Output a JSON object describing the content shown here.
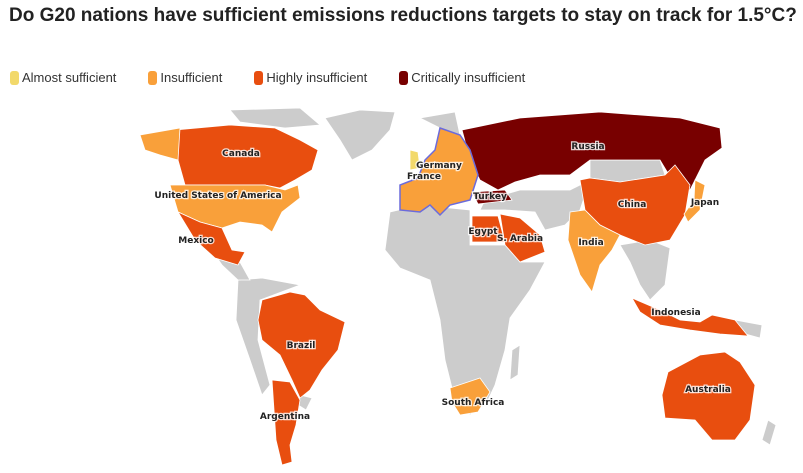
{
  "title": "Do G20 nations have sufficient emissions reductions targets to stay on track for 1.5°C?",
  "colors": {
    "almost": "#f2d96b",
    "insufficient": "#f9a03a",
    "highly": "#e84e0f",
    "critical": "#780000",
    "no_data": "#cccccc",
    "eu_outline": "#6b6bdc"
  },
  "legend": [
    {
      "label": "Almost sufficient",
      "color": "#f2d96b"
    },
    {
      "label": "Insufficient",
      "color": "#f9a03a"
    },
    {
      "label": "Highly insufficient",
      "color": "#e84e0f"
    },
    {
      "label": "Critically insufficient",
      "color": "#780000"
    }
  ],
  "countries": {
    "canada": {
      "label": "Canada",
      "rating": "Highly insufficient"
    },
    "usa": {
      "label": "United States of America",
      "rating": "Insufficient"
    },
    "mexico": {
      "label": "Mexico",
      "rating": "Highly insufficient"
    },
    "brazil": {
      "label": "Brazil",
      "rating": "Highly insufficient"
    },
    "argentina": {
      "label": "Argentina",
      "rating": "Highly insufficient"
    },
    "germany": {
      "label": "Germany",
      "rating": "Insufficient"
    },
    "france": {
      "label": "France",
      "rating": "Insufficient"
    },
    "turkey": {
      "label": "Turkey",
      "rating": "Critically insufficient"
    },
    "russia": {
      "label": "Russia",
      "rating": "Critically insufficient"
    },
    "egypt": {
      "label": "Egypt",
      "rating": "Highly insufficient"
    },
    "saudi": {
      "label": "S. Arabia",
      "rating": "Highly insufficient"
    },
    "india": {
      "label": "India",
      "rating": "Insufficient"
    },
    "china": {
      "label": "China",
      "rating": "Highly insufficient"
    },
    "japan": {
      "label": "Japan",
      "rating": "Insufficient"
    },
    "indonesia": {
      "label": "Indonesia",
      "rating": "Highly insufficient"
    },
    "australia": {
      "label": "Australia",
      "rating": "Highly insufficient"
    },
    "south_africa": {
      "label": "South Africa",
      "rating": "Insufficient"
    }
  }
}
